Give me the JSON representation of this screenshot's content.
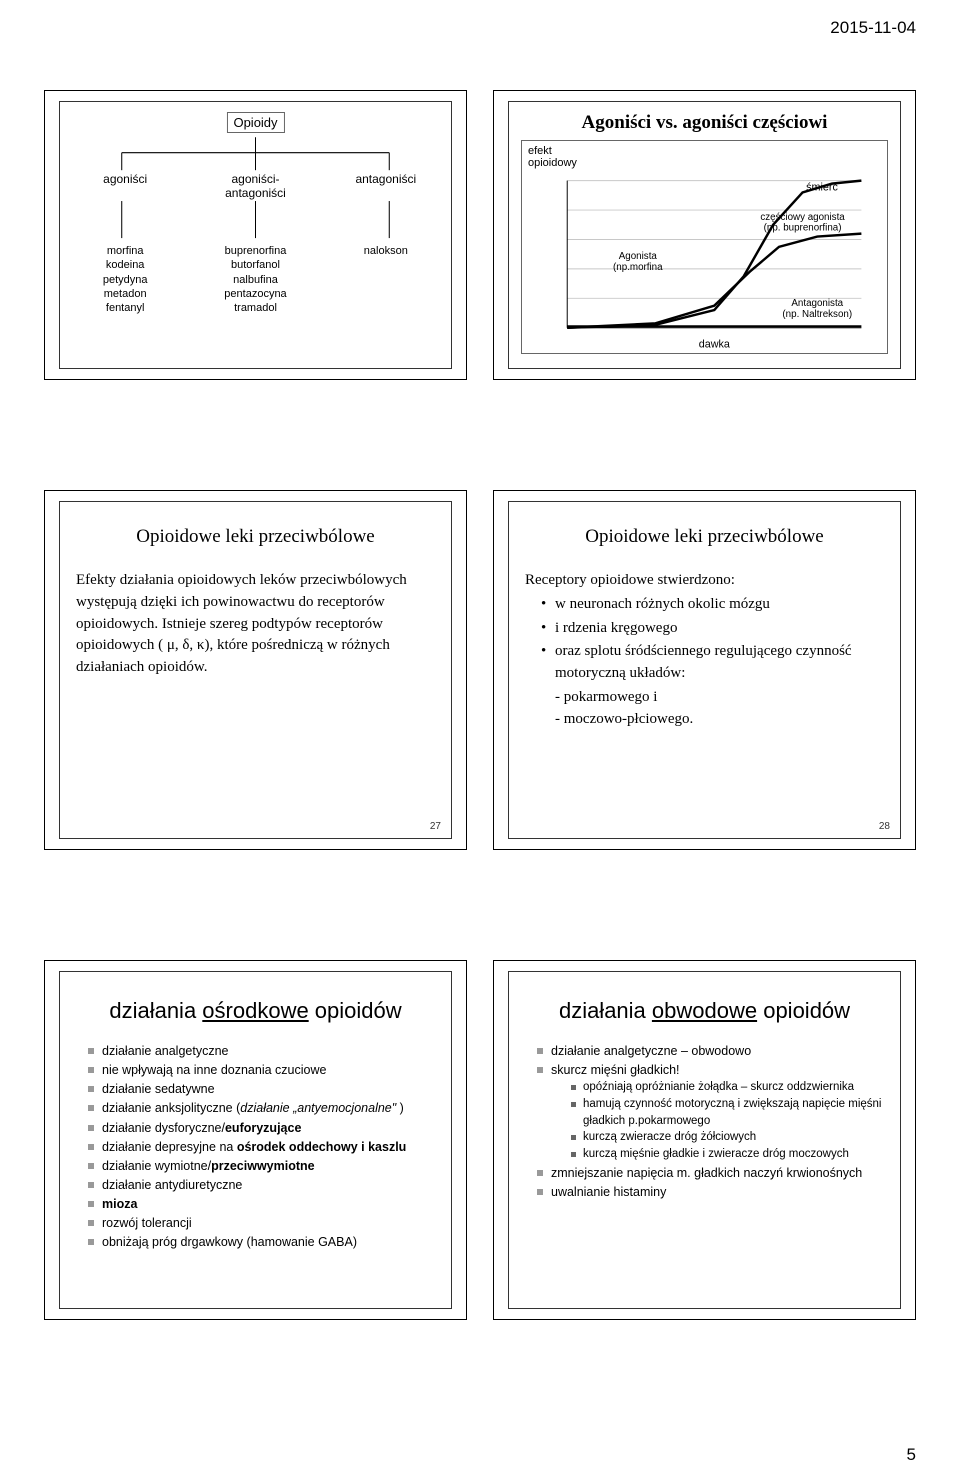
{
  "header": {
    "date": "2015-11-04",
    "page_number": "5"
  },
  "slide1": {
    "root": "Opioidy",
    "row2": [
      "agoniści",
      "agoniści-\nantagoniści",
      "antagoniści"
    ],
    "col1": "morfina\nkodeina\npetydyna\nmetadon\nfentanyl",
    "col2": "buprenorfina\nbutorfanol\nnalbufina\npentazocyna\ntramadol",
    "col3": "nalokson"
  },
  "slide2": {
    "title": "Agoniści vs. agoniści częściowi",
    "ylab": "efekt\nopioidowy",
    "xlab": "dawka",
    "death": "śmierć",
    "agonist": "Agonista\n(np.morfina",
    "partial": "częściowy agonista\n(np. buprenorfina)",
    "antagonist": "Antagonista\n(np. Naltrekson)",
    "curves": {
      "agonist": [
        [
          0,
          0
        ],
        [
          30,
          2
        ],
        [
          50,
          12
        ],
        [
          60,
          35
        ],
        [
          70,
          70
        ],
        [
          80,
          92
        ],
        [
          90,
          98
        ],
        [
          100,
          100
        ]
      ],
      "partial": [
        [
          0,
          0
        ],
        [
          30,
          3
        ],
        [
          50,
          15
        ],
        [
          62,
          38
        ],
        [
          72,
          55
        ],
        [
          85,
          62
        ],
        [
          100,
          64
        ]
      ],
      "antagonist": [
        [
          0,
          1
        ],
        [
          100,
          1
        ]
      ]
    },
    "colors": {
      "line": "#000000",
      "grid": "#c8c8c8",
      "bg": "#ffffff"
    }
  },
  "slide3": {
    "title": "Opioidowe leki przeciwbólowe",
    "para": "Efekty działania opioidowych leków przeciwbólowych występują dzięki ich powinowactwu do receptorów opioidowych. Istnieje szereg podtypów receptorów opioidowych ( μ, δ,  κ), które pośredniczą w różnych działaniach opioidów.",
    "num": "27"
  },
  "slide4": {
    "title": "Opioidowe leki przeciwbólowe",
    "lead": "Receptory opioidowe stwierdzono:",
    "b1": "w neuronach różnych okolic mózgu",
    "b2": "i rdzenia kręgowego",
    "b3": "oraz splotu śródściennego regulującego czynność motoryczną układów:",
    "s1": "-  pokarmowego i",
    "s2": "-  moczowo-płciowego.",
    "num": "28"
  },
  "slide5": {
    "title_pre": "działania ",
    "title_u": "ośrodkowe",
    "title_post": " opioidów",
    "items": [
      "działanie analgetyczne",
      "nie wpływają na inne doznania czuciowe",
      "działanie sedatywne",
      "działanie anksjolityczne (<i>działanie „antyemocjonalne\"</i> )",
      "działanie dysforyczne/<b>euforyzujące</b>",
      "działanie depresyjne na <b>ośrodek oddechowy i kaszlu</b>",
      "działanie wymiotne/<b>przeciwwymiotne</b>",
      "działanie antydiuretyczne",
      "<b>mioza</b>",
      "rozwój tolerancji",
      "obniżają próg drgawkowy (hamowanie GABA)"
    ]
  },
  "slide6": {
    "title_pre": "działania ",
    "title_u": "obwodowe",
    "title_post": " opioidów",
    "i1": "działanie analgetyczne – obwodowo",
    "i2": "skurcz mięśni gładkich!",
    "sub": [
      "opóźniają opróżnianie żołądka – skurcz oddzwiernika",
      "hamują czynność motoryczną i zwiększają napięcie mięśni gładkich p.pokarmowego",
      "kurczą zwieracze dróg żółciowych",
      "kurczą mięśnie gładkie i zwieracze dróg moczowych"
    ],
    "i3": "zmniejszanie napięcia m. gładkich naczyń krwionośnych",
    "i4": "uwalnianie histaminy"
  }
}
